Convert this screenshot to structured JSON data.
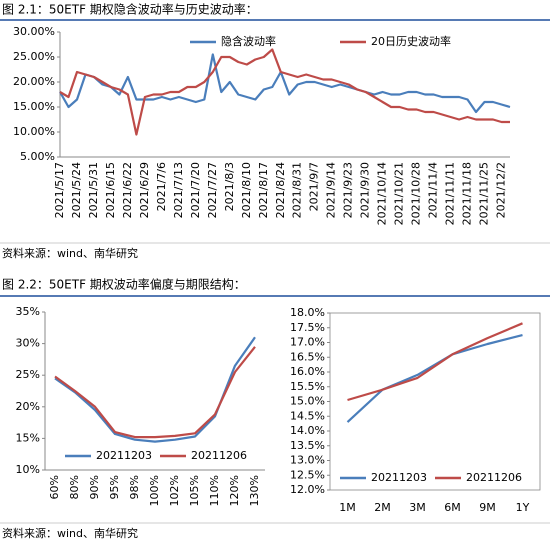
{
  "captions": [
    "图 2.1：50ETF 期权隐含波动率与历史波动率：",
    "图 2.2：50ETF 期权波动率偏度与期限结构："
  ],
  "sources": [
    "资料来源：wind、南华研究",
    "资料来源：wind、南华研究"
  ],
  "chart_data": [
    {
      "type": "line",
      "legend": "top",
      "categories": [
        "2021/5/17",
        null,
        "2021/5/24",
        null,
        "2021/5/31",
        null,
        "2021/6/15",
        null,
        "2021/6/22",
        null,
        "2021/6/29",
        null,
        "2021/7/6",
        null,
        "2021/7/13",
        null,
        "2021/7/20",
        null,
        "2021/7/27",
        null,
        "2021/8/3",
        null,
        "2021/8/10",
        null,
        "2021/8/17",
        null,
        "2021/8/24",
        null,
        "2021/8/31",
        null,
        "2021/9/7",
        null,
        "2021/9/14",
        null,
        "2021/9/23",
        null,
        "2021/9/30",
        null,
        "2021/10/14",
        null,
        "2021/10/21",
        null,
        "2021/10/28",
        null,
        "2021/11/4",
        null,
        "2021/11/11",
        null,
        "2021/11/18",
        null,
        "2021/11/25",
        null,
        "2021/12/2",
        null
      ],
      "series": [
        {
          "name": "隐含波动率",
          "color": "#4a7ebb",
          "values": [
            18,
            15,
            16.5,
            21.5,
            21,
            19.5,
            19,
            17.5,
            21,
            16.5,
            16.5,
            16.5,
            17,
            16.5,
            17,
            16.5,
            16,
            16.5,
            25.5,
            18,
            20,
            17.5,
            17,
            16.5,
            18.5,
            19,
            22,
            17.5,
            19.5,
            20,
            20,
            19.5,
            19,
            19.5,
            19,
            18.5,
            18,
            17.5,
            18,
            17.5,
            17.5,
            18,
            18,
            17.5,
            17.5,
            17,
            17,
            17,
            16.5,
            14,
            16,
            16,
            15.5,
            15
          ]
        },
        {
          "name": "20日历史波动率",
          "color": "#be4b48",
          "values": [
            18,
            17,
            22,
            21.5,
            21,
            20,
            19,
            18.5,
            17.5,
            9.5,
            17,
            17.5,
            17.5,
            18,
            18,
            19,
            19,
            20,
            22,
            25,
            25,
            24,
            23.5,
            24.5,
            25,
            26.5,
            22,
            21.5,
            21,
            21.5,
            21,
            20.5,
            20.5,
            20,
            19.5,
            18.5,
            18,
            17,
            16,
            15,
            15,
            14.5,
            14.5,
            14,
            14,
            13.5,
            13,
            12.5,
            13,
            12.5,
            12.5,
            12.5,
            12,
            12
          ]
        }
      ],
      "ylim": [
        5,
        30
      ],
      "yticks": [
        {
          "value": 5,
          "label": "5.00%"
        },
        {
          "value": 10,
          "label": "10.00%"
        },
        {
          "value": 15,
          "label": "15.00%"
        },
        {
          "value": 20,
          "label": "20.00%"
        },
        {
          "value": 25,
          "label": "25.00%"
        },
        {
          "value": 30,
          "label": "30.00%"
        }
      ]
    },
    {
      "type": "line",
      "legend": "bottom-left",
      "categories": [
        "60%",
        "80%",
        "90%",
        "95%",
        "98%",
        "100%",
        "102%",
        "105%",
        "110%",
        "120%",
        "130%"
      ],
      "series": [
        {
          "name": "20211203",
          "color": "#4a7ebb",
          "values": [
            24.5,
            22.3,
            19.5,
            15.7,
            14.8,
            14.5,
            14.8,
            15.3,
            18.5,
            26.5,
            31
          ]
        },
        {
          "name": "20211206",
          "color": "#be4b48",
          "values": [
            24.8,
            22.5,
            20,
            16,
            15.2,
            15.2,
            15.4,
            15.8,
            18.8,
            25.5,
            29.5
          ]
        }
      ],
      "ylim": [
        10,
        35
      ],
      "yticks": [
        {
          "value": 10,
          "label": "10%"
        },
        {
          "value": 15,
          "label": "15%"
        },
        {
          "value": 20,
          "label": "20%"
        },
        {
          "value": 25,
          "label": "25%"
        },
        {
          "value": 30,
          "label": "30%"
        },
        {
          "value": 35,
          "label": "35%"
        }
      ]
    },
    {
      "type": "line",
      "legend": "bottom",
      "categories": [
        "1M",
        "2M",
        "3M",
        "6M",
        "9M",
        "1Y"
      ],
      "series": [
        {
          "name": "20211203",
          "color": "#4a7ebb",
          "values": [
            14.3,
            15.4,
            15.9,
            16.6,
            16.95,
            17.25
          ]
        },
        {
          "name": "20211206",
          "color": "#be4b48",
          "values": [
            15.05,
            15.4,
            15.8,
            16.6,
            17.15,
            17.65
          ]
        }
      ],
      "ylim": [
        12,
        18
      ],
      "yticks": [
        {
          "value": 12,
          "label": "12.0%"
        },
        {
          "value": 12.5,
          "label": "12.5%"
        },
        {
          "value": 13,
          "label": "13.0%"
        },
        {
          "value": 13.5,
          "label": "13.5%"
        },
        {
          "value": 14,
          "label": "14.0%"
        },
        {
          "value": 14.5,
          "label": "14.5%"
        },
        {
          "value": 15,
          "label": "15.0%"
        },
        {
          "value": 15.5,
          "label": "15.5%"
        },
        {
          "value": 16,
          "label": "16.0%"
        },
        {
          "value": 16.5,
          "label": "16.5%"
        },
        {
          "value": 17,
          "label": "17.0%"
        },
        {
          "value": 17.5,
          "label": "17.5%"
        },
        {
          "value": 18,
          "label": "18.0%"
        }
      ]
    }
  ]
}
